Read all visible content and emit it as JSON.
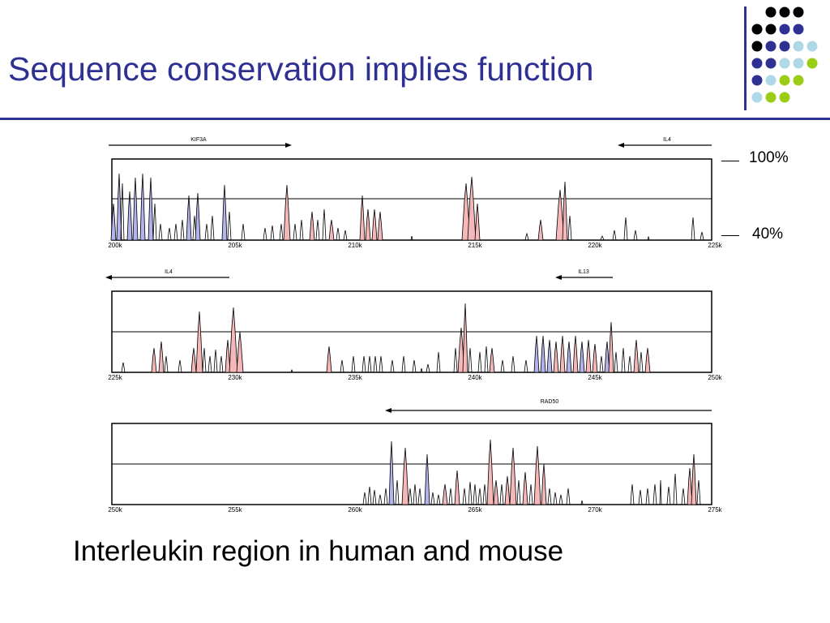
{
  "slide": {
    "title": "Sequence conservation implies function",
    "caption": "Interleukin region in human and mouse"
  },
  "scale": {
    "high_label": "100%",
    "low_label": "40%"
  },
  "decoration": {
    "dot_colors": [
      "#000000",
      "#2e3192",
      "#aed8e6",
      "#9acd14"
    ]
  },
  "colors": {
    "title": "#2e3192",
    "conserved_noncoding": "#f5b7b7",
    "exon": "#b3b3ee"
  },
  "panels": [
    {
      "ticks": [
        "200k",
        "205k",
        "210k",
        "215k",
        "220k",
        "225k"
      ],
      "genes": [
        {
          "name": "KIF3A",
          "direction": "right"
        },
        {
          "name": "IL4",
          "direction": "left"
        }
      ]
    },
    {
      "ticks": [
        "225k",
        "230k",
        "235k",
        "240k",
        "245k",
        "250k"
      ],
      "genes": [
        {
          "name": "IL4",
          "direction": "left"
        },
        {
          "name": "IL13",
          "direction": "left"
        }
      ]
    },
    {
      "ticks": [
        "250k",
        "255k",
        "260k",
        "265k",
        "270k",
        "275k"
      ],
      "genes": [
        {
          "name": "RAD50",
          "direction": "left"
        }
      ]
    }
  ]
}
